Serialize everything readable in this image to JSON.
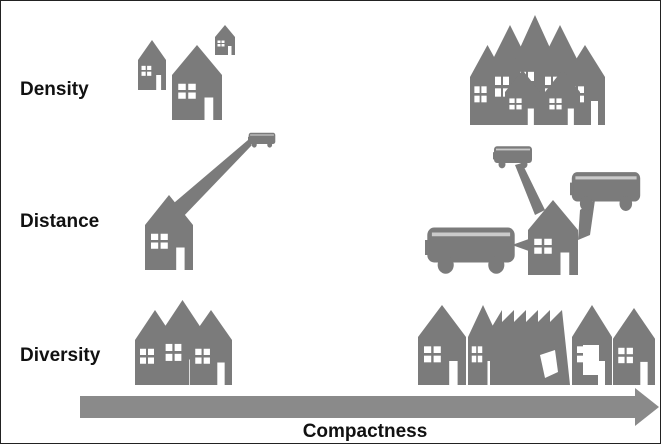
{
  "labels": {
    "density": "Density",
    "distance": "Distance",
    "diversity": "Diversity"
  },
  "axis": {
    "label": "Compactness"
  }
}
